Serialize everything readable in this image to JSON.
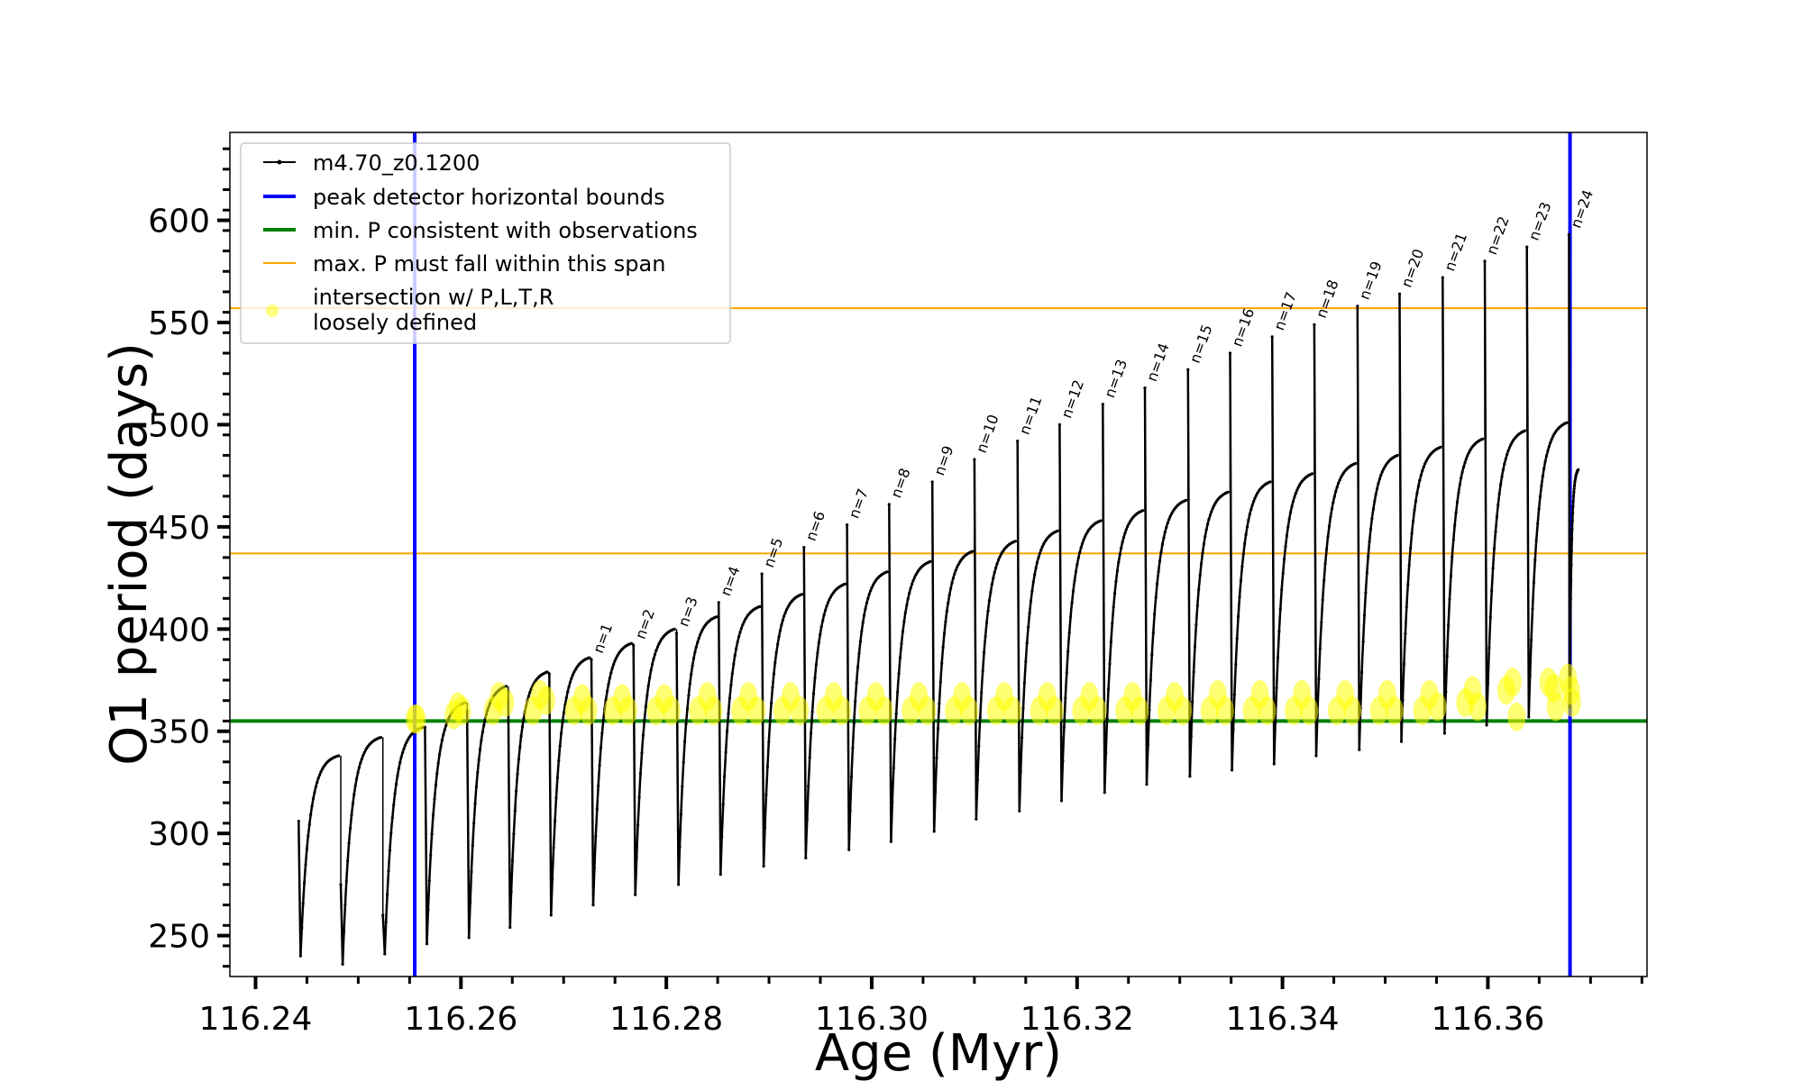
{
  "chart_data": {
    "type": "line",
    "xlabel": "Age (Myr)",
    "ylabel": "O1 period (days)",
    "xlim": [
      116.2375,
      116.3755
    ],
    "ylim": [
      230,
      643
    ],
    "xticks": [
      "116.24",
      "116.26",
      "116.28",
      "116.30",
      "116.32",
      "116.34",
      "116.36"
    ],
    "xtick_values": [
      116.24,
      116.26,
      116.28,
      116.3,
      116.32,
      116.34,
      116.36
    ],
    "yticks": [
      "250",
      "300",
      "350",
      "400",
      "450",
      "500",
      "550",
      "600"
    ],
    "ytick_values": [
      250,
      300,
      350,
      400,
      450,
      500,
      550,
      600
    ],
    "legend_position": "top-left",
    "colors": {
      "model": "#000000",
      "peak_bounds": "#0000ff",
      "min_p": "#008000",
      "max_span": "#ffa500",
      "intersection": "#ffff00"
    },
    "legend": [
      {
        "label": "m4.70_z0.1200",
        "kind": "line-marker",
        "color": "#000000"
      },
      {
        "label": "peak detector horizontal bounds",
        "kind": "line",
        "color": "#0000ff"
      },
      {
        "label": "min. P consistent with observations",
        "kind": "line",
        "color": "#008000"
      },
      {
        "label": "max. P must fall within this span",
        "kind": "line",
        "color": "#ffa500"
      },
      {
        "label_lines": [
          "intersection w/ P,L,T,R",
          "loosely defined"
        ],
        "kind": "marker",
        "color": "#ffff00"
      }
    ],
    "vertical_lines": [
      {
        "series": "peak detector horizontal bounds",
        "x": 116.2555
      },
      {
        "series": "peak detector horizontal bounds",
        "x": 116.368
      }
    ],
    "horizontal_lines": [
      {
        "series": "min. P consistent with observations",
        "y": 355
      },
      {
        "series": "max. P must fall within this span",
        "y": 437
      },
      {
        "series": "max. P must fall within this span",
        "y": 557
      }
    ],
    "series": [
      {
        "name": "m4.70_z0.1200",
        "pulses": [
          {
            "x0": 116.2442,
            "x1": 116.2483,
            "start": 306,
            "min": 240,
            "plateau": 338,
            "spike": 306
          },
          {
            "x0": 116.2483,
            "x1": 116.2524,
            "start": 275,
            "min": 236,
            "plateau": 347,
            "spike": 275
          },
          {
            "x0": 116.2524,
            "x1": 116.2565,
            "start": 260,
            "min": 241,
            "plateau": 352,
            "spike": 260
          },
          {
            "x0": 116.2565,
            "x1": 116.2606,
            "start": 352,
            "min": 246,
            "plateau": 364,
            "spike": 352
          },
          {
            "x0": 116.2606,
            "x1": 116.2646,
            "start": 360,
            "min": 249,
            "plateau": 372,
            "spike": 360
          },
          {
            "x0": 116.2646,
            "x1": 116.2686,
            "start": 370,
            "min": 254,
            "plateau": 379,
            "spike": 370
          },
          {
            "x0": 116.2686,
            "x1": 116.2727,
            "start": 378,
            "min": 260,
            "plateau": 386,
            "spike": 378
          },
          {
            "x0": 116.2727,
            "x1": 116.2768,
            "start": 385,
            "min": 265,
            "plateau": 393,
            "spike": 385,
            "label": "n=1"
          },
          {
            "x0": 116.2768,
            "x1": 116.281,
            "start": 392,
            "min": 270,
            "plateau": 400,
            "spike": 392,
            "label": "n=2"
          },
          {
            "x0": 116.281,
            "x1": 116.2851,
            "start": 398,
            "min": 275,
            "plateau": 406,
            "spike": 398,
            "label": "n=3"
          },
          {
            "x0": 116.2851,
            "x1": 116.2893,
            "start": 413,
            "min": 280,
            "plateau": 411,
            "spike": 413,
            "label": "n=4"
          },
          {
            "x0": 116.2893,
            "x1": 116.2934,
            "start": 427,
            "min": 284,
            "plateau": 417,
            "spike": 427,
            "label": "n=5"
          },
          {
            "x0": 116.2934,
            "x1": 116.2976,
            "start": 440,
            "min": 288,
            "plateau": 422,
            "spike": 440,
            "label": "n=6"
          },
          {
            "x0": 116.2976,
            "x1": 116.3017,
            "start": 451,
            "min": 292,
            "plateau": 428,
            "spike": 451,
            "label": "n=7"
          },
          {
            "x0": 116.3017,
            "x1": 116.3059,
            "start": 461,
            "min": 296,
            "plateau": 433,
            "spike": 461,
            "label": "n=8"
          },
          {
            "x0": 116.3059,
            "x1": 116.31,
            "start": 472,
            "min": 301,
            "plateau": 438,
            "spike": 472,
            "label": "n=9"
          },
          {
            "x0": 116.31,
            "x1": 116.3142,
            "start": 483,
            "min": 307,
            "plateau": 443,
            "spike": 483,
            "label": "n=10"
          },
          {
            "x0": 116.3142,
            "x1": 116.3183,
            "start": 492,
            "min": 311,
            "plateau": 448,
            "spike": 492,
            "label": "n=11"
          },
          {
            "x0": 116.3183,
            "x1": 116.3225,
            "start": 500,
            "min": 316,
            "plateau": 453,
            "spike": 500,
            "label": "n=12"
          },
          {
            "x0": 116.3225,
            "x1": 116.3266,
            "start": 510,
            "min": 320,
            "plateau": 458,
            "spike": 510,
            "label": "n=13"
          },
          {
            "x0": 116.3266,
            "x1": 116.3308,
            "start": 518,
            "min": 324,
            "plateau": 463,
            "spike": 518,
            "label": "n=14"
          },
          {
            "x0": 116.3308,
            "x1": 116.3349,
            "start": 527,
            "min": 328,
            "plateau": 467,
            "spike": 527,
            "label": "n=15"
          },
          {
            "x0": 116.3349,
            "x1": 116.339,
            "start": 535,
            "min": 331,
            "plateau": 472,
            "spike": 535,
            "label": "n=16"
          },
          {
            "x0": 116.339,
            "x1": 116.3431,
            "start": 543,
            "min": 334,
            "plateau": 476,
            "spike": 543,
            "label": "n=17"
          },
          {
            "x0": 116.3431,
            "x1": 116.3473,
            "start": 549,
            "min": 338,
            "plateau": 481,
            "spike": 549,
            "label": "n=18"
          },
          {
            "x0": 116.3473,
            "x1": 116.3514,
            "start": 558,
            "min": 341,
            "plateau": 485,
            "spike": 558,
            "label": "n=19"
          },
          {
            "x0": 116.3514,
            "x1": 116.3556,
            "start": 564,
            "min": 345,
            "plateau": 489,
            "spike": 564,
            "label": "n=20"
          },
          {
            "x0": 116.3556,
            "x1": 116.3597,
            "start": 572,
            "min": 349,
            "plateau": 493,
            "spike": 572,
            "label": "n=21"
          },
          {
            "x0": 116.3597,
            "x1": 116.3638,
            "start": 580,
            "min": 353,
            "plateau": 497,
            "spike": 580,
            "label": "n=22"
          },
          {
            "x0": 116.3638,
            "x1": 116.3679,
            "start": 587,
            "min": 357,
            "plateau": 501,
            "spike": 587,
            "label": "n=23"
          },
          {
            "x0": 116.3679,
            "x1": 116.369,
            "start": 593,
            "min": 362,
            "plateau": 478,
            "spike": 593,
            "label": "n=24"
          }
        ]
      },
      {
        "name": "intersection w/ P,L,T,R loosely defined",
        "points": [
          {
            "x": 116.2555,
            "y": 356
          },
          {
            "x": 116.2557,
            "y": 356
          },
          {
            "x": 116.2593,
            "y": 358
          },
          {
            "x": 116.2597,
            "y": 362
          },
          {
            "x": 116.2601,
            "y": 360
          },
          {
            "x": 116.2631,
            "y": 360
          },
          {
            "x": 116.2637,
            "y": 367
          },
          {
            "x": 116.2643,
            "y": 364
          },
          {
            "x": 116.267,
            "y": 360
          },
          {
            "x": 116.2677,
            "y": 368
          },
          {
            "x": 116.2683,
            "y": 365
          },
          {
            "x": 116.271,
            "y": 360
          },
          {
            "x": 116.2718,
            "y": 366
          },
          {
            "x": 116.2724,
            "y": 360
          },
          {
            "x": 116.2748,
            "y": 360
          },
          {
            "x": 116.2757,
            "y": 366
          },
          {
            "x": 116.2763,
            "y": 360
          },
          {
            "x": 116.279,
            "y": 360
          },
          {
            "x": 116.2798,
            "y": 366
          },
          {
            "x": 116.2805,
            "y": 360
          },
          {
            "x": 116.2831,
            "y": 360
          },
          {
            "x": 116.284,
            "y": 367
          },
          {
            "x": 116.2846,
            "y": 360
          },
          {
            "x": 116.2872,
            "y": 360
          },
          {
            "x": 116.288,
            "y": 367
          },
          {
            "x": 116.2888,
            "y": 360
          },
          {
            "x": 116.2913,
            "y": 360
          },
          {
            "x": 116.2921,
            "y": 367
          },
          {
            "x": 116.293,
            "y": 360
          },
          {
            "x": 116.2955,
            "y": 360
          },
          {
            "x": 116.2963,
            "y": 367
          },
          {
            "x": 116.2971,
            "y": 360
          },
          {
            "x": 116.2996,
            "y": 360
          },
          {
            "x": 116.3004,
            "y": 367
          },
          {
            "x": 116.3012,
            "y": 360
          },
          {
            "x": 116.3038,
            "y": 360
          },
          {
            "x": 116.3046,
            "y": 367
          },
          {
            "x": 116.3054,
            "y": 360
          },
          {
            "x": 116.308,
            "y": 360
          },
          {
            "x": 116.3088,
            "y": 367
          },
          {
            "x": 116.3095,
            "y": 360
          },
          {
            "x": 116.3121,
            "y": 360
          },
          {
            "x": 116.3129,
            "y": 367
          },
          {
            "x": 116.3137,
            "y": 360
          },
          {
            "x": 116.3163,
            "y": 360
          },
          {
            "x": 116.3171,
            "y": 367
          },
          {
            "x": 116.3178,
            "y": 360
          },
          {
            "x": 116.3204,
            "y": 360
          },
          {
            "x": 116.3212,
            "y": 367
          },
          {
            "x": 116.322,
            "y": 360
          },
          {
            "x": 116.3246,
            "y": 360
          },
          {
            "x": 116.3254,
            "y": 367
          },
          {
            "x": 116.3261,
            "y": 360
          },
          {
            "x": 116.3287,
            "y": 360
          },
          {
            "x": 116.3295,
            "y": 367
          },
          {
            "x": 116.3303,
            "y": 360
          },
          {
            "x": 116.3329,
            "y": 360
          },
          {
            "x": 116.3337,
            "y": 368
          },
          {
            "x": 116.3344,
            "y": 360
          },
          {
            "x": 116.337,
            "y": 360
          },
          {
            "x": 116.3378,
            "y": 368
          },
          {
            "x": 116.3385,
            "y": 360
          },
          {
            "x": 116.3411,
            "y": 360
          },
          {
            "x": 116.3419,
            "y": 368
          },
          {
            "x": 116.3426,
            "y": 360
          },
          {
            "x": 116.3453,
            "y": 360
          },
          {
            "x": 116.3461,
            "y": 368
          },
          {
            "x": 116.3468,
            "y": 360
          },
          {
            "x": 116.3494,
            "y": 360
          },
          {
            "x": 116.3502,
            "y": 368
          },
          {
            "x": 116.3509,
            "y": 360
          },
          {
            "x": 116.3536,
            "y": 360
          },
          {
            "x": 116.3543,
            "y": 368
          },
          {
            "x": 116.3551,
            "y": 362
          },
          {
            "x": 116.3578,
            "y": 364
          },
          {
            "x": 116.3585,
            "y": 370
          },
          {
            "x": 116.359,
            "y": 362
          },
          {
            "x": 116.3618,
            "y": 370
          },
          {
            "x": 116.3624,
            "y": 374
          },
          {
            "x": 116.3628,
            "y": 357
          },
          {
            "x": 116.3659,
            "y": 374
          },
          {
            "x": 116.3664,
            "y": 371
          },
          {
            "x": 116.3666,
            "y": 362
          },
          {
            "x": 116.3678,
            "y": 376
          },
          {
            "x": 116.3681,
            "y": 370
          },
          {
            "x": 116.3682,
            "y": 364
          }
        ]
      }
    ]
  }
}
